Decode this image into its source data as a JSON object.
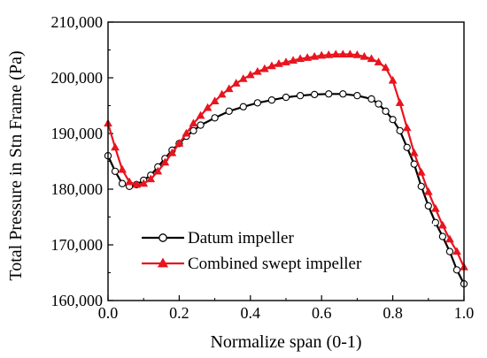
{
  "chart_data": {
    "type": "line",
    "xlabel": "Normalize span (0-1)",
    "ylabel": "Total Pressure in Stn Frame (Pa)",
    "xlim": [
      0,
      1
    ],
    "ylim": [
      160000,
      210000
    ],
    "x_ticks": [
      0.0,
      0.2,
      0.4,
      0.6,
      0.8,
      1.0
    ],
    "x_tick_labels": [
      "0.0",
      "0.2",
      "0.4",
      "0.6",
      "0.8",
      "1.0"
    ],
    "y_ticks": [
      160000,
      170000,
      180000,
      190000,
      200000,
      210000
    ],
    "y_tick_labels": [
      "160,000",
      "170,000",
      "180,000",
      "190,000",
      "200,000",
      "210,000"
    ],
    "grid": false,
    "legend_position": "bottom-left",
    "series": [
      {
        "name": "Datum impeller",
        "color": "#000000",
        "marker": "open-circle",
        "x": [
          0.0,
          0.02,
          0.04,
          0.06,
          0.08,
          0.1,
          0.12,
          0.14,
          0.16,
          0.18,
          0.2,
          0.22,
          0.24,
          0.26,
          0.3,
          0.34,
          0.38,
          0.42,
          0.46,
          0.5,
          0.54,
          0.58,
          0.62,
          0.66,
          0.7,
          0.74,
          0.76,
          0.78,
          0.8,
          0.82,
          0.84,
          0.86,
          0.88,
          0.9,
          0.92,
          0.94,
          0.96,
          0.98,
          1.0
        ],
        "y": [
          186000,
          183200,
          181000,
          180500,
          180800,
          181600,
          182500,
          184000,
          185500,
          187000,
          188200,
          189500,
          190500,
          191500,
          192800,
          194000,
          194800,
          195500,
          196000,
          196500,
          196800,
          197000,
          197100,
          197100,
          196800,
          196200,
          195300,
          194000,
          192500,
          190500,
          187500,
          184500,
          180500,
          177000,
          174000,
          171500,
          168800,
          165500,
          163000
        ]
      },
      {
        "name": "Combined swept impeller",
        "color": "#e8141e",
        "marker": "filled-triangle",
        "x": [
          0.0,
          0.02,
          0.04,
          0.06,
          0.08,
          0.1,
          0.12,
          0.14,
          0.16,
          0.18,
          0.2,
          0.22,
          0.24,
          0.26,
          0.28,
          0.3,
          0.32,
          0.34,
          0.36,
          0.38,
          0.4,
          0.42,
          0.44,
          0.46,
          0.48,
          0.5,
          0.52,
          0.54,
          0.56,
          0.58,
          0.6,
          0.62,
          0.64,
          0.66,
          0.68,
          0.7,
          0.72,
          0.74,
          0.76,
          0.78,
          0.8,
          0.82,
          0.84,
          0.86,
          0.88,
          0.9,
          0.92,
          0.94,
          0.96,
          0.98,
          1.0
        ],
        "y": [
          191800,
          187500,
          183500,
          181300,
          180800,
          181000,
          181800,
          183200,
          184800,
          186500,
          188200,
          190000,
          191800,
          193200,
          194600,
          195800,
          197000,
          198000,
          199000,
          199800,
          200500,
          201100,
          201600,
          202100,
          202500,
          202800,
          203100,
          203400,
          203600,
          203800,
          204000,
          204100,
          204200,
          204200,
          204200,
          204100,
          203800,
          203400,
          202800,
          201800,
          199500,
          195500,
          191000,
          186500,
          183000,
          179500,
          176500,
          173500,
          171000,
          168800,
          166000
        ]
      }
    ]
  }
}
